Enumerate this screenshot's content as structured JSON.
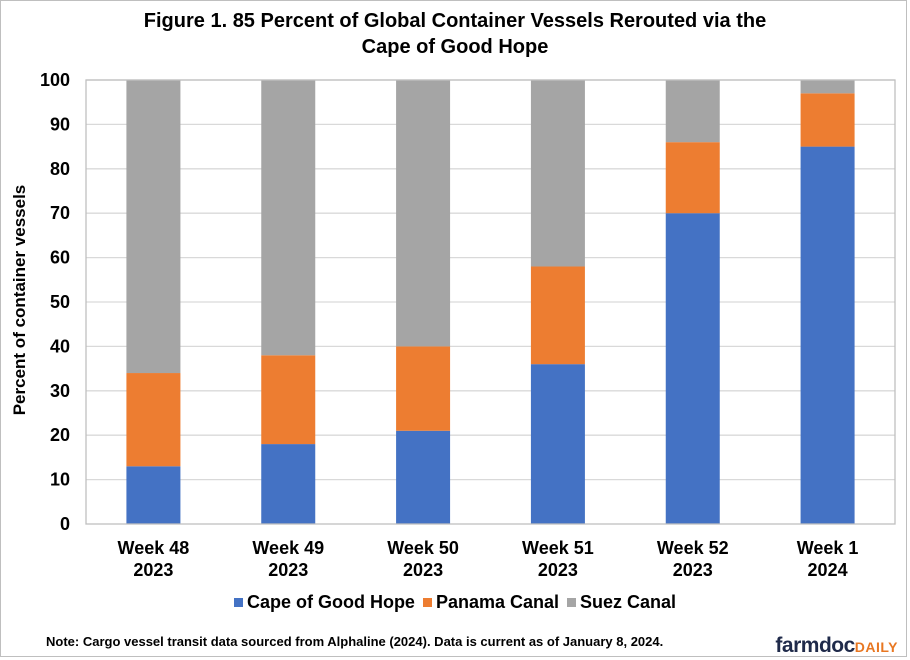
{
  "chart_data": {
    "type": "bar",
    "stacked": true,
    "title": "Figure 1. 85 Percent of Global Container Vessels Rerouted via the Cape of Good Hope",
    "title_lines": [
      "Figure  1. 85 Percent of Global Container  Vessels Rerouted via the",
      "Cape of Good Hope"
    ],
    "xlabel": "",
    "ylabel": "Percent of  container vessels",
    "ylim": [
      0,
      100
    ],
    "yticks": [
      0,
      10,
      20,
      30,
      40,
      50,
      60,
      70,
      80,
      90,
      100
    ],
    "grid": true,
    "legend_position": "bottom",
    "categories": [
      [
        "Week 48",
        "2023"
      ],
      [
        "Week 49",
        "2023"
      ],
      [
        "Week 50",
        "2023"
      ],
      [
        "Week 51",
        "2023"
      ],
      [
        "Week 52",
        "2023"
      ],
      [
        "Week 1",
        "2024"
      ]
    ],
    "series": [
      {
        "name": "Cape of Good Hope",
        "color": "#4472c4",
        "values": [
          13,
          18,
          21,
          36,
          70,
          85
        ]
      },
      {
        "name": "Panama Canal",
        "color": "#ed7d31",
        "values": [
          21,
          20,
          19,
          22,
          16,
          12
        ]
      },
      {
        "name": "Suez Canal",
        "color": "#a5a5a5",
        "values": [
          66,
          62,
          60,
          42,
          14,
          3
        ]
      }
    ]
  },
  "note": "Note: Cargo vessel transit data sourced from Alphaline (2024). Data is current as of January 8, 2024.",
  "logo": {
    "main": "farmdoc",
    "accent": "DAILY"
  }
}
